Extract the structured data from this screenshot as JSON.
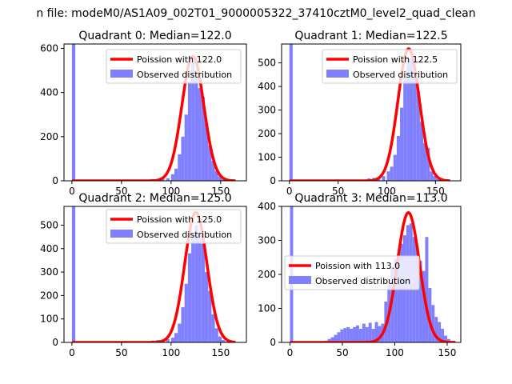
{
  "suptitle": "n file: modeM0/AS1A09_002T01_9000005322_37410cztM0_level2_quad_clean",
  "colors": {
    "hist": "#8080ff",
    "curve": "#ff0000",
    "axis": "#000000"
  },
  "chart_data": [
    {
      "type": "bar",
      "title": "Quadrant 0: Median=122.0",
      "xlim": [
        -8,
        176
      ],
      "ylim": [
        0,
        620
      ],
      "xticks": [
        0,
        50,
        100,
        150
      ],
      "yticks": [
        0,
        200,
        400,
        600
      ],
      "legend": {
        "placement": "top-right",
        "entries": [
          "Poission with 122.0",
          "Observed distribution"
        ]
      },
      "series": [
        {
          "name": "Observed distribution",
          "kind": "histogram",
          "bin_width": 3.4,
          "x": [
            0,
            75,
            80,
            85,
            90,
            95,
            100,
            103.4,
            106.8,
            110.2,
            113.6,
            117,
            120.4,
            123.8,
            127.2,
            130.6,
            134,
            137.4,
            140.8,
            144.2,
            147.6,
            151,
            154.4,
            157.8
          ],
          "y": [
            620,
            5,
            8,
            8,
            10,
            12,
            30,
            55,
            120,
            200,
            300,
            450,
            540,
            470,
            420,
            380,
            260,
            160,
            90,
            45,
            20,
            8,
            4,
            2
          ]
        },
        {
          "name": "Poission with 122.0",
          "kind": "poisson",
          "mean": 122.0,
          "peak": 565,
          "xrange": [
            0,
            165
          ]
        }
      ]
    },
    {
      "type": "bar",
      "title": "Quadrant 1: Median=122.5",
      "xlim": [
        -8,
        176
      ],
      "ylim": [
        0,
        580
      ],
      "xticks": [
        0,
        50,
        100,
        150
      ],
      "yticks": [
        0,
        100,
        200,
        300,
        400,
        500
      ],
      "legend": {
        "placement": "top-right",
        "entries": [
          "Poission with 122.5",
          "Observed distribution"
        ]
      },
      "series": [
        {
          "name": "Observed distribution",
          "kind": "histogram",
          "bin_width": 3.4,
          "x": [
            0,
            75,
            80,
            85,
            90,
            95,
            100,
            103.4,
            106.8,
            110.2,
            113.6,
            117,
            120.4,
            123.8,
            127.2,
            130.6,
            134,
            137.4,
            140.8,
            144.2,
            147.6,
            151,
            154.4,
            157.8
          ],
          "y": [
            580,
            5,
            10,
            12,
            15,
            20,
            40,
            60,
            110,
            190,
            310,
            440,
            510,
            520,
            440,
            380,
            250,
            160,
            140,
            40,
            20,
            8,
            4,
            2
          ]
        },
        {
          "name": "Poission with 122.5",
          "kind": "poisson",
          "mean": 122.5,
          "peak": 560,
          "xrange": [
            0,
            165
          ]
        }
      ]
    },
    {
      "type": "bar",
      "title": "Quadrant 2: Median=125.0",
      "xlim": [
        -8,
        176
      ],
      "ylim": [
        0,
        580
      ],
      "xticks": [
        0,
        50,
        100,
        150
      ],
      "yticks": [
        0,
        100,
        200,
        300,
        400,
        500
      ],
      "legend": {
        "placement": "top-right",
        "entries": [
          "Poission with 125.0",
          "Observed distribution"
        ]
      },
      "series": [
        {
          "name": "Observed distribution",
          "kind": "histogram",
          "bin_width": 3.4,
          "x": [
            0,
            75,
            80,
            85,
            90,
            95,
            100,
            103.4,
            106.8,
            110.2,
            113.6,
            117,
            120.4,
            123.8,
            127.2,
            130.6,
            134,
            137.4,
            140.8,
            144.2,
            147.6,
            151,
            154.4,
            157.8
          ],
          "y": [
            580,
            5,
            8,
            10,
            12,
            14,
            20,
            40,
            80,
            150,
            250,
            380,
            460,
            500,
            460,
            420,
            300,
            220,
            120,
            60,
            25,
            10,
            4,
            2
          ]
        },
        {
          "name": "Poission with 125.0",
          "kind": "poisson",
          "mean": 125.0,
          "peak": 555,
          "xrange": [
            0,
            165
          ]
        }
      ]
    },
    {
      "type": "bar",
      "title": "Quadrant 3: Median=113.0",
      "xlim": [
        -8,
        163
      ],
      "ylim": [
        0,
        400
      ],
      "xticks": [
        0,
        50,
        100,
        150
      ],
      "yticks": [
        0,
        100,
        200,
        300,
        400
      ],
      "legend": {
        "placement": "center-left",
        "entries": [
          "Poission with 113.0",
          "Observed distribution"
        ]
      },
      "series": [
        {
          "name": "Observed distribution",
          "kind": "histogram",
          "bin_width": 3.0,
          "x": [
            0,
            30,
            33,
            36,
            39,
            42,
            45,
            48,
            51,
            54,
            57,
            60,
            63,
            66,
            69,
            72,
            75,
            78,
            81,
            84,
            87,
            90,
            93,
            96,
            99,
            102,
            105,
            108,
            111,
            114,
            117,
            120,
            123,
            126,
            129,
            132,
            135,
            138,
            141,
            144,
            147,
            150,
            153
          ],
          "y": [
            400,
            2,
            5,
            10,
            15,
            22,
            30,
            38,
            42,
            45,
            40,
            45,
            50,
            40,
            55,
            45,
            58,
            40,
            60,
            48,
            55,
            120,
            170,
            220,
            245,
            260,
            290,
            315,
            345,
            350,
            310,
            280,
            240,
            210,
            310,
            160,
            110,
            75,
            60,
            40,
            20,
            10,
            5
          ]
        },
        {
          "name": "Poission with 113.0",
          "kind": "poisson",
          "mean": 113.0,
          "peak": 382,
          "xrange": [
            0,
            158
          ]
        }
      ]
    }
  ]
}
